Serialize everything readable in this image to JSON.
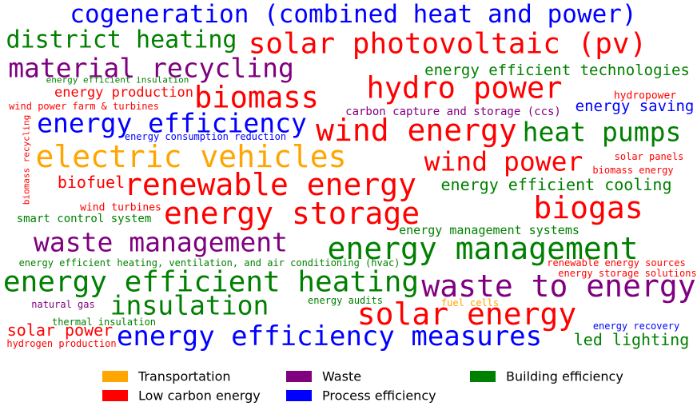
{
  "chart_data": {
    "type": "wordcloud",
    "series": [
      {
        "name": "Transportation",
        "color": "#ffa500",
        "words": [
          "electric vehicles",
          "fuel cells"
        ],
        "weights": [
          38,
          12
        ]
      },
      {
        "name": "Low carbon energy",
        "color": "#ff0000",
        "words": [
          "solar photovoltaic (pv)",
          "hydro power",
          "energy production",
          "biomass",
          "hydropower",
          "wind power farm & turbines",
          "biomass recycling",
          "wind energy",
          "solar panels",
          "wind power",
          "biomass energy",
          "biofuel",
          "renewable energy",
          "wind turbines",
          "biogas",
          "energy storage",
          "renewable energy sources",
          "energy storage solutions",
          "solar energy",
          "solar power",
          "hydrogen production"
        ],
        "weights": [
          36,
          37,
          17,
          37,
          13,
          12,
          11,
          38,
          12,
          33,
          12,
          20,
          38,
          13,
          38,
          38,
          12,
          12,
          38,
          20,
          12
        ]
      },
      {
        "name": "Waste",
        "color": "#800080",
        "words": [
          "material recycling",
          "carbon capture and storage (ccs)",
          "waste management",
          "waste to energy",
          "natural gas"
        ],
        "weights": [
          33,
          14,
          33,
          38,
          12
        ]
      },
      {
        "name": "Process efficiency",
        "color": "#0000ff",
        "words": [
          "cogeneration (combined heat and power)",
          "energy saving",
          "energy efficiency",
          "energy consumption reduction",
          "energy efficiency measures",
          "energy recovery"
        ],
        "weights": [
          31,
          19,
          33,
          12,
          34,
          12
        ]
      },
      {
        "name": "Building efficiency",
        "color": "#008000",
        "words": [
          "district heating",
          "energy efficient technologies",
          "energy efficient insulation",
          "heat pumps",
          "energy efficient cooling",
          "smart control system",
          "energy management systems",
          "energy management",
          "energy efficient heating, ventilation, and air conditioning (hvac)",
          "energy efficient heating",
          "insulation",
          "energy audits",
          "thermal insulation",
          "led lighting"
        ],
        "weights": [
          30,
          19,
          11,
          33,
          20,
          14,
          15,
          38,
          12,
          36,
          33,
          12,
          12,
          20
        ]
      }
    ]
  }
}
